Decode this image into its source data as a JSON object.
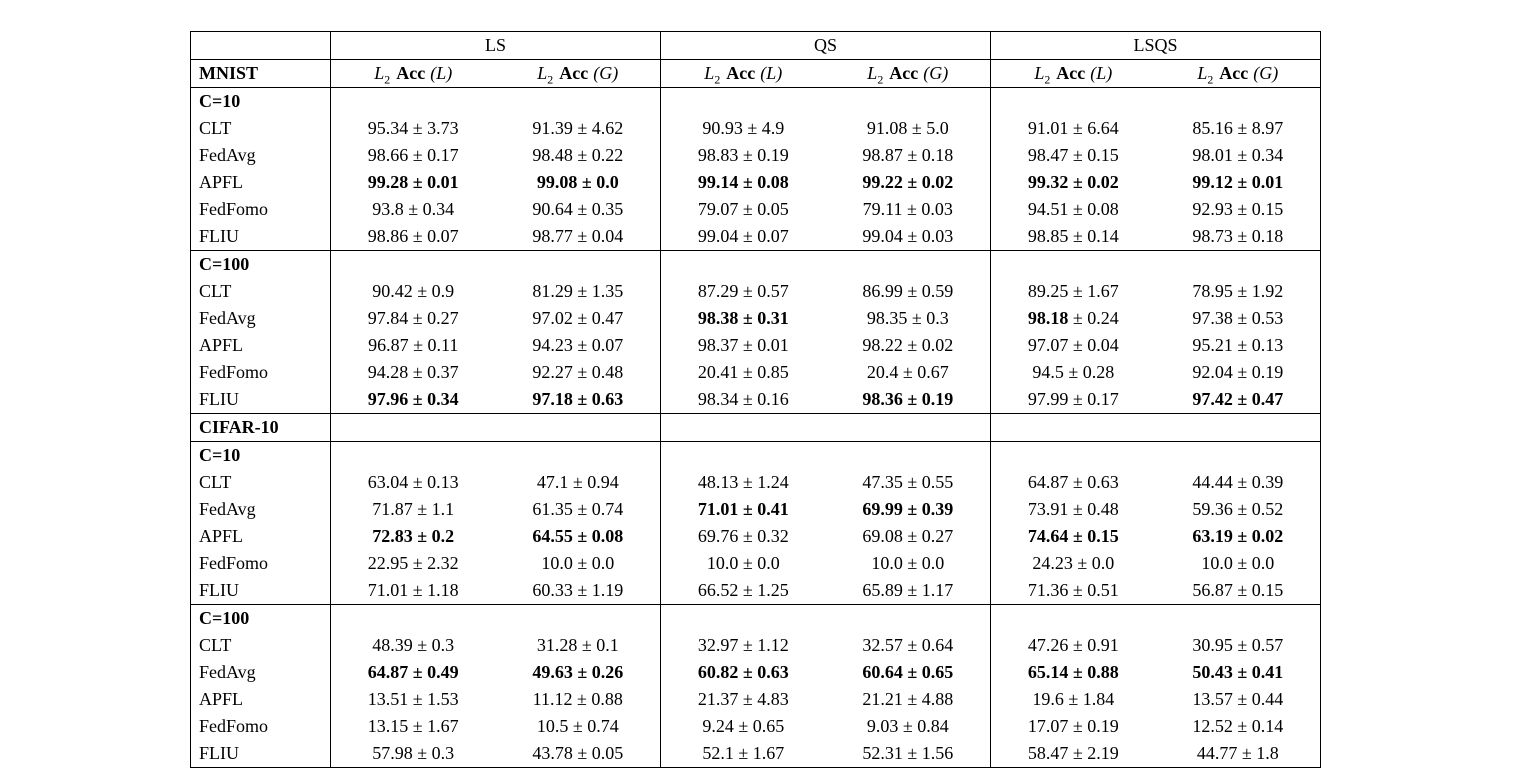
{
  "page": {
    "background": "#ffffff",
    "text_color": "#000000"
  },
  "table": {
    "col_groups": [
      {
        "label": "LS"
      },
      {
        "label": "QS"
      },
      {
        "label": "LSQS"
      }
    ],
    "subheader": {
      "dataset": "MNIST",
      "cols": [
        {
          "sym": "L",
          "sub": "2",
          "acc": "Acc",
          "arg": "(L)"
        },
        {
          "sym": "L",
          "sub": "2",
          "acc": "Acc",
          "arg": "(G)"
        },
        {
          "sym": "L",
          "sub": "2",
          "acc": "Acc",
          "arg": "(L)"
        },
        {
          "sym": "L",
          "sub": "2",
          "acc": "Acc",
          "arg": "(G)"
        },
        {
          "sym": "L",
          "sub": "2",
          "acc": "Acc",
          "arg": "(L)"
        },
        {
          "sym": "L",
          "sub": "2",
          "acc": "Acc",
          "arg": "(G)"
        }
      ]
    },
    "sections": [
      {
        "label": "C=10",
        "rows": [
          {
            "method": "CLT",
            "cells": [
              "95.34 ± 3.73",
              "91.39 ± 4.62",
              "90.93 ± 4.9",
              "91.08 ± 5.0",
              "91.01 ± 6.64",
              "85.16 ± 8.97"
            ]
          },
          {
            "method": "FedAvg",
            "cells": [
              "98.66 ± 0.17",
              "98.48 ± 0.22",
              "98.83 ± 0.19",
              "98.87 ± 0.18",
              "98.47 ± 0.15",
              "98.01 ± 0.34"
            ]
          },
          {
            "method": "APFL",
            "cells": [
              "99.28 ± 0.01",
              "99.08 ± 0.0",
              "99.14 ± 0.08",
              "99.22 ± 0.02",
              "99.32 ± 0.02",
              "99.12 ± 0.01"
            ],
            "bold": [
              0,
              1,
              2,
              3,
              4,
              5
            ]
          },
          {
            "method": "FedFomo",
            "cells": [
              "93.8 ± 0.34",
              "90.64 ± 0.35",
              "79.07 ± 0.05",
              "79.11 ± 0.03",
              "94.51 ± 0.08",
              "92.93 ± 0.15"
            ]
          },
          {
            "method": "FLIU",
            "cells": [
              "98.86 ± 0.07",
              "98.77 ± 0.04",
              "99.04 ± 0.07",
              "99.04 ± 0.03",
              "98.85 ± 0.14",
              "98.73 ± 0.18"
            ]
          }
        ]
      },
      {
        "label": "C=100",
        "rows": [
          {
            "method": "CLT",
            "cells": [
              "90.42 ± 0.9",
              "81.29 ± 1.35",
              "87.29 ± 0.57",
              "86.99 ± 0.59",
              "89.25 ± 1.67",
              "78.95 ± 1.92"
            ]
          },
          {
            "method": "FedAvg",
            "cells": [
              "97.84 ± 0.27",
              "97.02 ± 0.47",
              "98.38 ± 0.31",
              "98.35 ± 0.3",
              "98.18 ± 0.24",
              "97.38 ± 0.53"
            ],
            "bold": [
              2
            ],
            "bold_value": [
              4
            ]
          },
          {
            "method": "APFL",
            "cells": [
              "96.87 ± 0.11",
              "94.23 ± 0.07",
              "98.37 ± 0.01",
              "98.22 ± 0.02",
              "97.07 ± 0.04",
              "95.21 ± 0.13"
            ]
          },
          {
            "method": "FedFomo",
            "cells": [
              "94.28 ± 0.37",
              "92.27 ± 0.48",
              "20.41 ± 0.85",
              "20.4 ± 0.67",
              "94.5 ± 0.28",
              "92.04 ± 0.19"
            ]
          },
          {
            "method": "FLIU",
            "cells": [
              "97.96 ± 0.34",
              "97.18 ± 0.63",
              "98.34 ± 0.16",
              "98.36 ± 0.19",
              "97.99 ± 0.17",
              "97.42 ± 0.47"
            ],
            "bold": [
              0,
              1,
              3,
              5
            ]
          }
        ]
      },
      {
        "label": "CIFAR-10",
        "rows": []
      },
      {
        "label": "C=10",
        "rows": [
          {
            "method": "CLT",
            "cells": [
              "63.04 ± 0.13",
              "47.1 ± 0.94",
              "48.13 ± 1.24",
              "47.35 ± 0.55",
              "64.87 ± 0.63",
              "44.44 ± 0.39"
            ]
          },
          {
            "method": "FedAvg",
            "cells": [
              "71.87 ± 1.1",
              "61.35 ± 0.74",
              "71.01 ± 0.41",
              "69.99 ± 0.39",
              "73.91 ± 0.48",
              "59.36 ± 0.52"
            ],
            "bold": [
              2,
              3
            ]
          },
          {
            "method": "APFL",
            "cells": [
              "72.83 ± 0.2",
              "64.55 ± 0.08",
              "69.76 ± 0.32",
              "69.08 ± 0.27",
              "74.64 ± 0.15",
              "63.19 ± 0.02"
            ],
            "bold": [
              0,
              1,
              4,
              5
            ]
          },
          {
            "method": "FedFomo",
            "cells": [
              "22.95 ± 2.32",
              "10.0 ± 0.0",
              "10.0 ± 0.0",
              "10.0 ± 0.0",
              "24.23 ± 0.0",
              "10.0 ± 0.0"
            ]
          },
          {
            "method": "FLIU",
            "cells": [
              "71.01 ± 1.18",
              "60.33 ± 1.19",
              "66.52 ± 1.25",
              "65.89 ± 1.17",
              "71.36 ± 0.51",
              "56.87 ± 0.15"
            ]
          }
        ]
      },
      {
        "label": "C=100",
        "rows": [
          {
            "method": "CLT",
            "cells": [
              "48.39 ± 0.3",
              "31.28 ± 0.1",
              "32.97 ± 1.12",
              "32.57 ± 0.64",
              "47.26 ± 0.91",
              "30.95 ± 0.57"
            ]
          },
          {
            "method": "FedAvg",
            "cells": [
              "64.87 ± 0.49",
              "49.63 ± 0.26",
              "60.82 ± 0.63",
              "60.64 ± 0.65",
              "65.14 ± 0.88",
              "50.43 ± 0.41"
            ],
            "bold": [
              0,
              1,
              2,
              3,
              4,
              5
            ]
          },
          {
            "method": "APFL",
            "cells": [
              "13.51 ± 1.53",
              "11.12 ± 0.88",
              "21.37 ± 4.83",
              "21.21 ± 4.88",
              "19.6 ± 1.84",
              "13.57 ± 0.44"
            ]
          },
          {
            "method": "FedFomo",
            "cells": [
              "13.15 ± 1.67",
              "10.5 ± 0.74",
              "9.24 ± 0.65",
              "9.03 ± 0.84",
              "17.07 ± 0.19",
              "12.52 ± 0.14"
            ]
          },
          {
            "method": "FLIU",
            "cells": [
              "57.98 ± 0.3",
              "43.78 ± 0.05",
              "52.1 ± 1.67",
              "52.31 ± 1.56",
              "58.47 ± 2.19",
              "44.77 ± 1.8"
            ]
          }
        ]
      }
    ]
  }
}
